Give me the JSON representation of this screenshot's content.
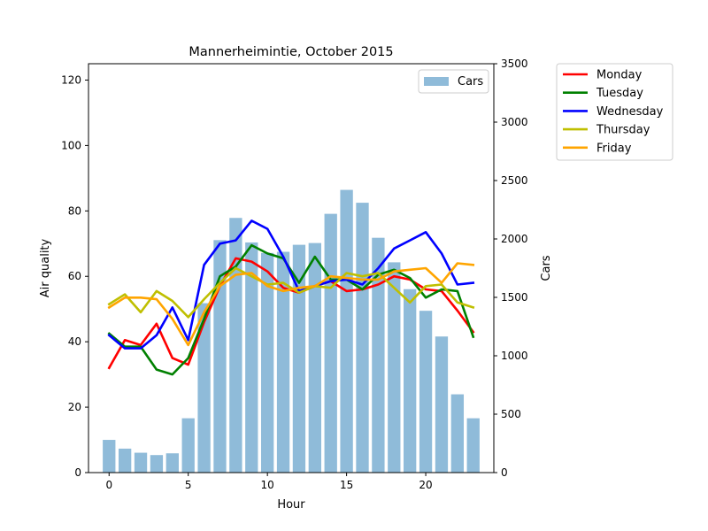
{
  "chart_data": {
    "type": "bar+line",
    "title": "Mannerheimintie, October 2015",
    "xlabel": "Hour",
    "ylabel": "Air quality",
    "y2label": "Cars",
    "xlim": [
      -1.3,
      24.3
    ],
    "ylim": [
      0,
      125
    ],
    "y2lim": [
      0,
      3500
    ],
    "x_ticks": [
      0,
      5,
      10,
      15,
      20
    ],
    "y_ticks": [
      0,
      20,
      40,
      60,
      80,
      100,
      120
    ],
    "y2_ticks": [
      0,
      500,
      1000,
      1500,
      2000,
      2500,
      3000,
      3500
    ],
    "bars": {
      "name": "Cars",
      "color": "#1f77b4",
      "opacity": 0.5,
      "x": [
        0,
        1,
        2,
        3,
        4,
        5,
        6,
        7,
        8,
        9,
        10,
        11,
        12,
        13,
        14,
        15,
        16,
        17,
        18,
        19,
        20,
        21,
        22,
        23
      ],
      "values": [
        280,
        205,
        170,
        150,
        165,
        465,
        1450,
        1990,
        2180,
        1970,
        1880,
        1890,
        1950,
        1965,
        2215,
        2420,
        2310,
        2010,
        1800,
        1570,
        1385,
        1165,
        670,
        465
      ]
    },
    "series": [
      {
        "name": "Monday",
        "color": "#ff0000",
        "values": [
          32,
          40.5,
          39,
          45.5,
          35,
          33,
          46,
          57,
          65.5,
          64.5,
          61.5,
          56.5,
          55,
          57,
          58.5,
          55.5,
          56,
          57.5,
          60,
          59,
          56,
          55.5,
          49.5,
          43
        ]
      },
      {
        "name": "Tuesday",
        "color": "#008000",
        "values": [
          42.5,
          38.5,
          38.5,
          31.5,
          30,
          35,
          47,
          60,
          63,
          69.5,
          67,
          65.5,
          58,
          66,
          59,
          59,
          56,
          60.5,
          62,
          59.5,
          53.5,
          56,
          55.5,
          41.5
        ]
      },
      {
        "name": "Wednesday",
        "color": "#0000ff",
        "values": [
          42,
          38,
          38,
          42,
          50.5,
          40.5,
          63.5,
          70,
          71,
          77,
          74.5,
          66,
          55.5,
          57,
          58.5,
          59,
          57.5,
          62.5,
          68.5,
          71,
          73.5,
          67,
          57.5,
          58
        ]
      },
      {
        "name": "Thursday",
        "color": "#bfbf00",
        "values": [
          51.5,
          54.5,
          49,
          55.5,
          52.5,
          47.5,
          53,
          58,
          62.5,
          60,
          57.5,
          58,
          55,
          57,
          56.5,
          61,
          60,
          61,
          56.5,
          52,
          57,
          57.5,
          52,
          50.5
        ]
      },
      {
        "name": "Friday",
        "color": "#ffa500",
        "values": [
          50.5,
          53.5,
          53.5,
          53,
          47,
          39,
          49,
          57,
          60.5,
          61,
          57,
          55.5,
          56.5,
          57,
          60,
          59.5,
          59,
          59,
          61.5,
          62,
          62.5,
          58,
          64,
          63.5
        ]
      }
    ],
    "legend_bars_position": "upper-right inside plot",
    "legend_lines_position": "right outside plot",
    "grid": false
  }
}
